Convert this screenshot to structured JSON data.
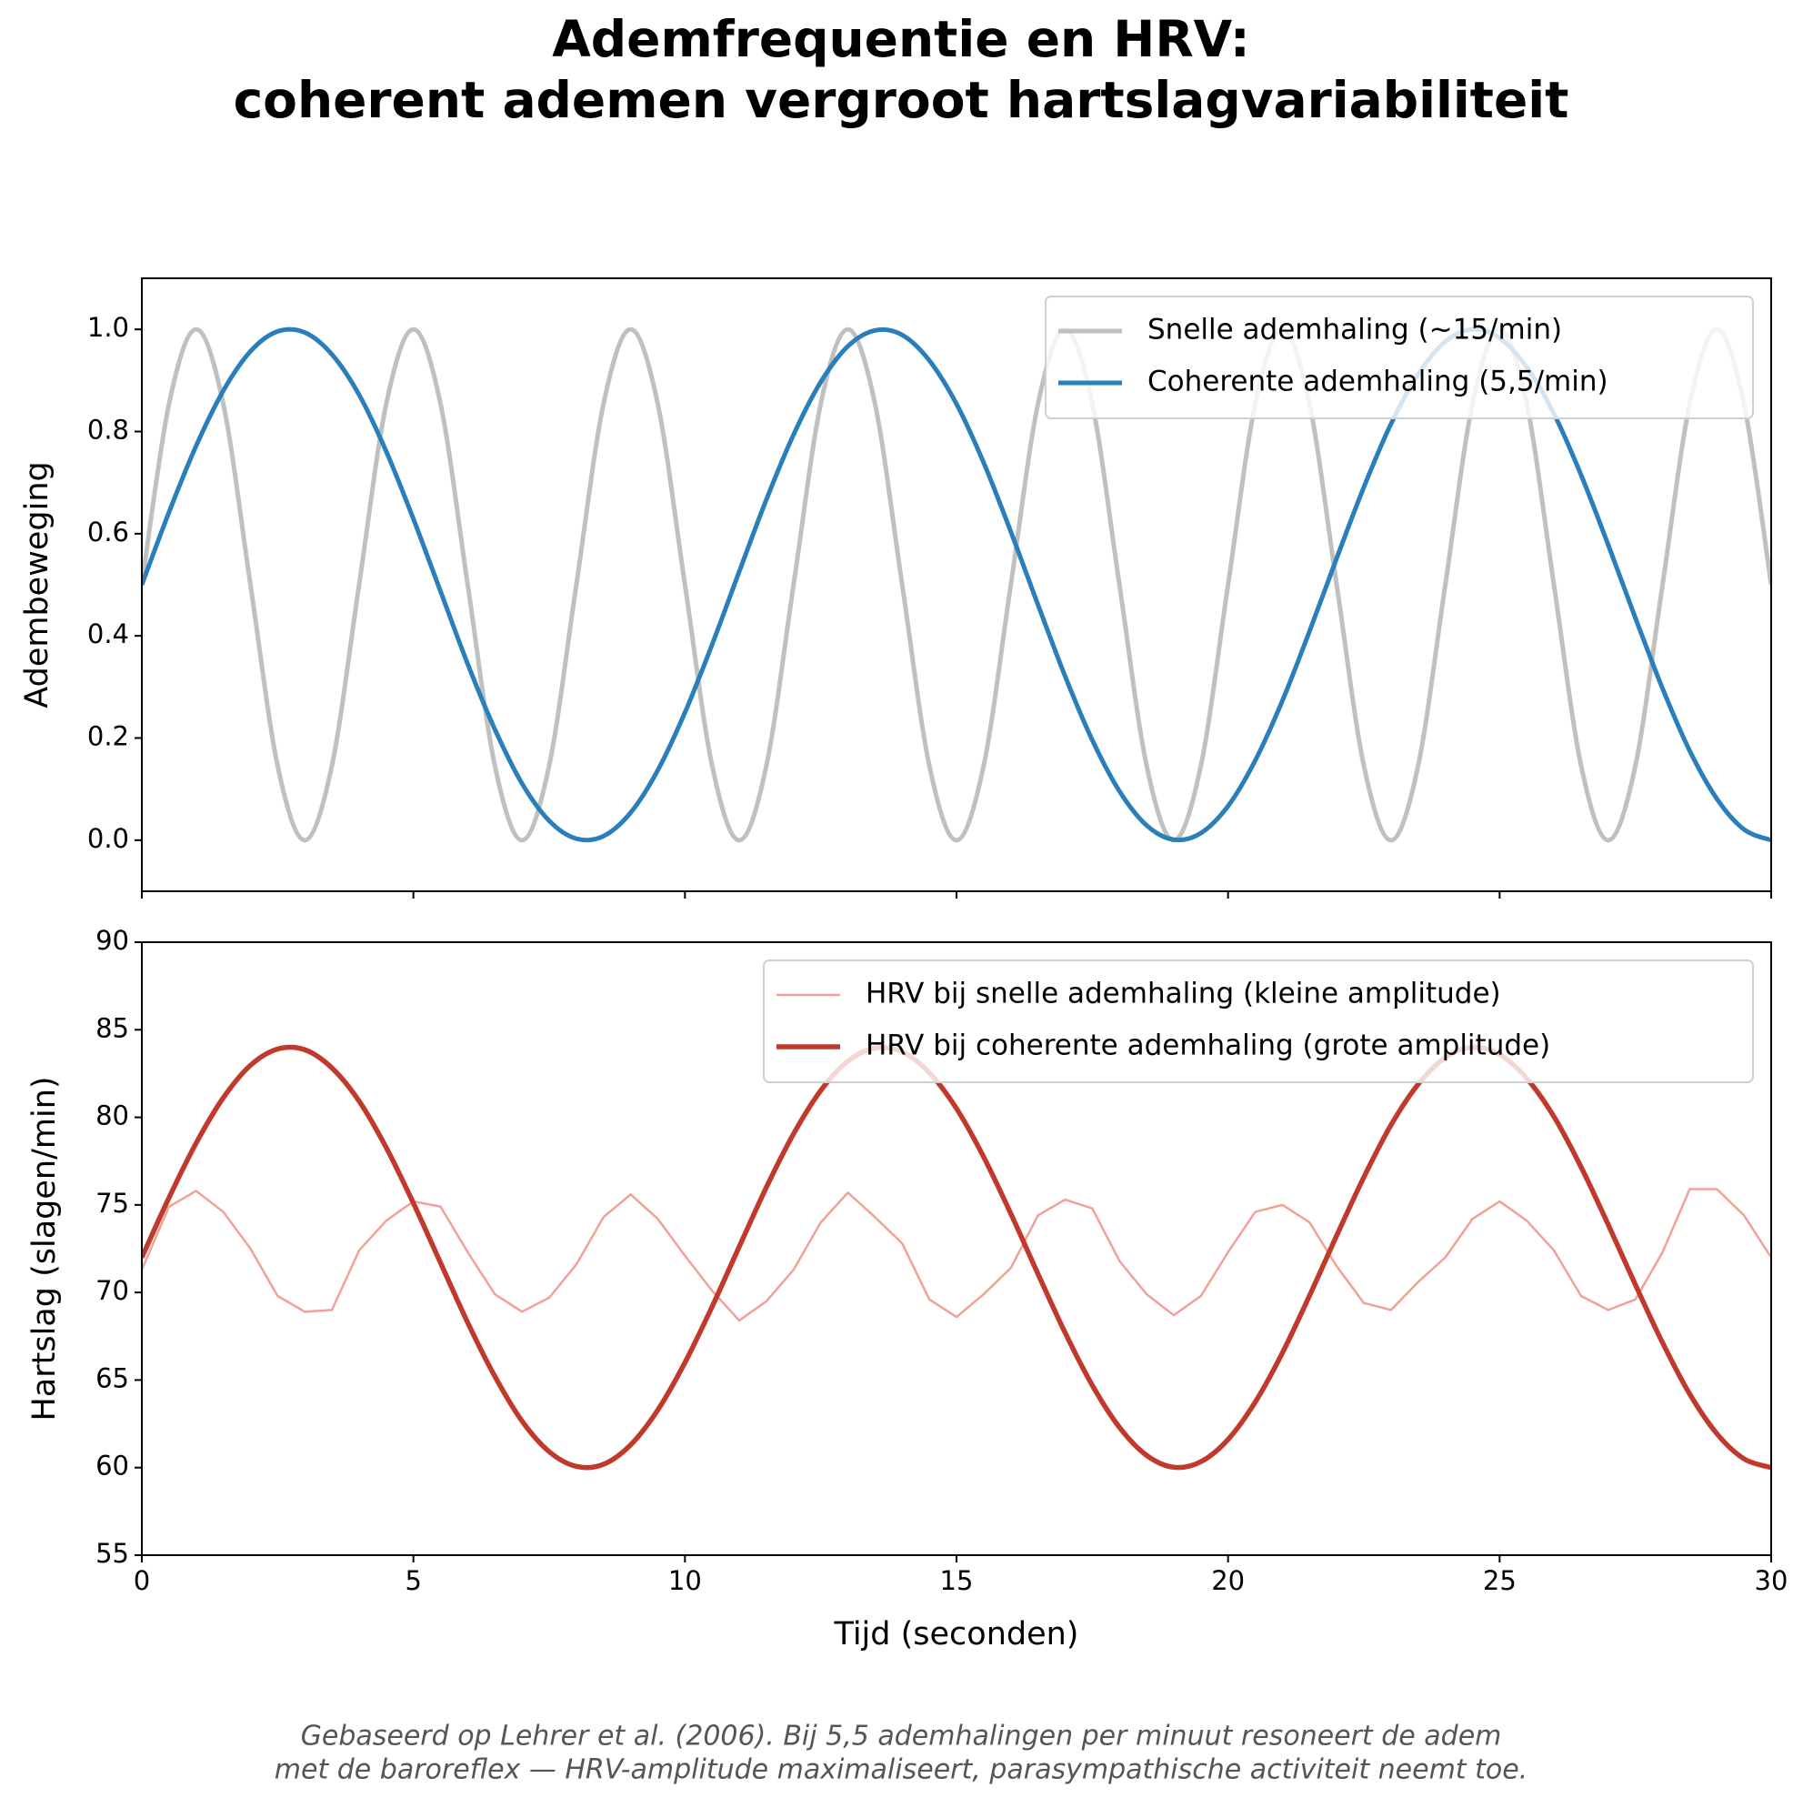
{
  "title": [
    "Ademfrequentie en HRV:",
    "coherent ademen vergroot hartslagvariabiliteit"
  ],
  "footnote": [
    "Gebaseerd op Lehrer et al. (2006). Bij 5,5 ademhalingen per minuut resoneert de adem",
    "met de baroreflex — HRV-amplitude maximaliseert, parasympathische activiteit neemt toe."
  ],
  "chart_data": [
    {
      "type": "line",
      "ylabel": "Adembeweging",
      "x": [
        0,
        0.5,
        1,
        1.5,
        2,
        2.5,
        3,
        3.5,
        4,
        4.5,
        5,
        5.5,
        6,
        6.5,
        7,
        7.5,
        8,
        8.5,
        9,
        9.5,
        10,
        10.5,
        11,
        11.5,
        12,
        12.5,
        13,
        13.5,
        14,
        14.5,
        15,
        15.5,
        16,
        16.5,
        17,
        17.5,
        18,
        18.5,
        19,
        19.5,
        20,
        20.5,
        21,
        21.5,
        22,
        22.5,
        23,
        23.5,
        24,
        24.5,
        25,
        25.5,
        26,
        26.5,
        27,
        27.5,
        28,
        28.5,
        29,
        29.5,
        30
      ],
      "series": [
        {
          "name": "Snelle ademhaling (~15/min)",
          "color": "#c0c0c0",
          "linewidth": 5,
          "values": [
            0.5,
            0.854,
            1,
            0.854,
            0.5,
            0.146,
            0,
            0.146,
            0.5,
            0.854,
            1,
            0.854,
            0.5,
            0.146,
            0,
            0.146,
            0.5,
            0.854,
            1,
            0.854,
            0.5,
            0.146,
            0,
            0.146,
            0.5,
            0.854,
            1,
            0.854,
            0.5,
            0.146,
            0,
            0.146,
            0.5,
            0.854,
            1,
            0.854,
            0.5,
            0.146,
            0,
            0.146,
            0.5,
            0.854,
            1,
            0.854,
            0.5,
            0.146,
            0,
            0.146,
            0.5,
            0.854,
            1,
            0.854,
            0.5,
            0.146,
            0,
            0.146,
            0.5,
            0.854,
            1,
            0.854,
            0.5
          ]
        },
        {
          "name": "Coherente ademhaling (5,5/min)",
          "color": "#2a7fba",
          "linewidth": 5,
          "values": [
            0.5,
            0.642,
            0.772,
            0.88,
            0.957,
            0.996,
            0.994,
            0.951,
            0.872,
            0.761,
            0.629,
            0.487,
            0.345,
            0.217,
            0.111,
            0.038,
            0.003,
            0.008,
            0.054,
            0.137,
            0.25,
            0.383,
            0.526,
            0.667,
            0.794,
            0.897,
            0.967,
            0.998,
            0.989,
            0.939,
            0.854,
            0.739,
            0.604,
            0.461,
            0.321,
            0.196,
            0.096,
            0.029,
            0.001,
            0.014,
            0.067,
            0.156,
            0.273,
            0.409,
            0.552,
            0.691,
            0.815,
            0.912,
            0.976,
            1.0,
            0.983,
            0.926,
            0.835,
            0.715,
            0.578,
            0.435,
            0.297,
            0.175,
            0.081,
            0.021,
            0
          ]
        }
      ],
      "xlim": [
        0,
        30
      ],
      "xticks": [
        0,
        5,
        10,
        15,
        20,
        25,
        30
      ],
      "ylim": [
        -0.1,
        1.1
      ],
      "yticks": [
        {
          "value": 0,
          "label": "0.0"
        },
        {
          "value": 0.2,
          "label": "0.2"
        },
        {
          "value": 0.4,
          "label": "0.4"
        },
        {
          "value": 0.6,
          "label": "0.6"
        },
        {
          "value": 0.8,
          "label": "0.8"
        },
        {
          "value": 1,
          "label": "1.0"
        }
      ],
      "legend": "upper right"
    },
    {
      "type": "line",
      "ylabel": "Hartslag (slagen/min)",
      "xlabel": "Tijd (seconden)",
      "x": [
        0,
        0.5,
        1,
        1.5,
        2,
        2.5,
        3,
        3.5,
        4,
        4.5,
        5,
        5.5,
        6,
        6.5,
        7,
        7.5,
        8,
        8.5,
        9,
        9.5,
        10,
        10.5,
        11,
        11.5,
        12,
        12.5,
        13,
        13.5,
        14,
        14.5,
        15,
        15.5,
        16,
        16.5,
        17,
        17.5,
        18,
        18.5,
        19,
        19.5,
        20,
        20.5,
        21,
        21.5,
        22,
        22.5,
        23,
        23.5,
        24,
        24.5,
        25,
        25.5,
        26,
        26.5,
        27,
        27.5,
        28,
        28.5,
        29,
        29.5,
        30
      ],
      "series": [
        {
          "name": "HRV bij snelle ademhaling (kleine amplitude)",
          "color": "#f1a198",
          "linewidth": 2.5,
          "values": [
            71.3,
            74.9,
            75.8,
            74.6,
            72.5,
            69.8,
            68.9,
            69.0,
            72.4,
            74.1,
            75.2,
            74.9,
            72.3,
            69.9,
            68.9,
            69.7,
            71.6,
            74.3,
            75.6,
            74.2,
            72.1,
            70.1,
            68.4,
            69.5,
            71.3,
            74.0,
            75.7,
            74.3,
            72.8,
            69.6,
            68.6,
            69.9,
            71.4,
            74.4,
            75.3,
            74.8,
            71.8,
            69.9,
            68.7,
            69.8,
            72.3,
            74.6,
            75.0,
            74.0,
            71.5,
            69.4,
            69.0,
            70.6,
            72.0,
            74.2,
            75.2,
            74.1,
            72.4,
            69.8,
            69.0,
            69.6,
            72.3,
            75.9,
            75.9,
            74.4,
            72.0
          ]
        },
        {
          "name": "HRV bij coherente ademhaling (grote amplitude)",
          "color": "#c0392b",
          "linewidth": 5.5,
          "values": [
            72,
            75.41,
            78.53,
            81.12,
            82.97,
            83.9,
            83.86,
            82.82,
            80.93,
            78.27,
            75.1,
            71.69,
            68.28,
            65.21,
            62.66,
            60.91,
            60.07,
            60.19,
            61.3,
            63.29,
            66,
            69.19,
            72.62,
            76.01,
            79.06,
            81.53,
            83.21,
            83.95,
            83.74,
            82.54,
            80.5,
            77.74,
            74.5,
            71.06,
            67.7,
            64.7,
            62.3,
            60.7,
            60.02,
            60.34,
            61.61,
            63.74,
            66.55,
            69.82,
            73.25,
            76.58,
            79.56,
            81.89,
            83.42,
            84,
            83.59,
            82.22,
            80.04,
            77.16,
            73.87,
            70.44,
            67.13,
            64.2,
            61.94,
            60.5,
            60
          ]
        }
      ],
      "xlim": [
        0,
        30
      ],
      "xticks": [
        0,
        5,
        10,
        15,
        20,
        25,
        30
      ],
      "ylim": [
        55,
        90
      ],
      "yticks": [
        55,
        60,
        65,
        70,
        75,
        80,
        85,
        90
      ],
      "legend": "upper right"
    }
  ]
}
